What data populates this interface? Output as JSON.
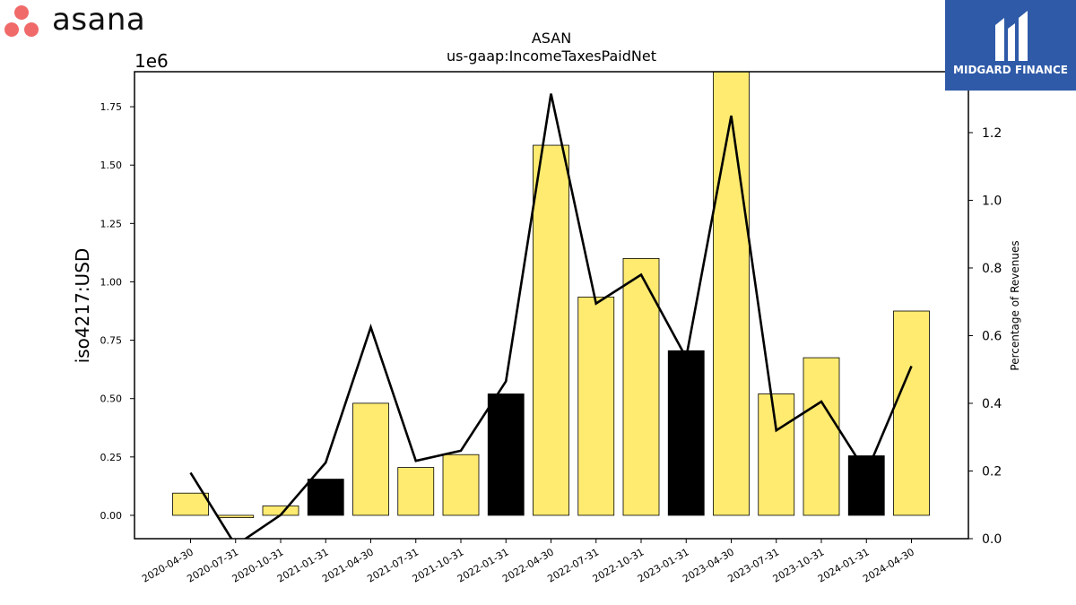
{
  "brand": {
    "name": "asana",
    "logo_color": "#f06a6a"
  },
  "sponsor": {
    "name": "MIDGARD FINANCE",
    "bg_color": "#2f5aa8"
  },
  "chart_data": {
    "type": "bar",
    "title": "ASAN",
    "subtitle": "us-gaap:IncomeTaxesPaidNet",
    "ylabel": "iso4217:USD",
    "y_offset_text": "1e6",
    "y2label": "Percentage of Revenues",
    "categories": [
      "2020-04-30",
      "2020-07-31",
      "2020-10-31",
      "2021-01-31",
      "2021-04-30",
      "2021-07-31",
      "2021-10-31",
      "2022-01-31",
      "2022-04-30",
      "2022-07-31",
      "2022-10-31",
      "2023-01-31",
      "2023-04-30",
      "2023-07-31",
      "2023-10-31",
      "2024-01-31",
      "2024-04-30"
    ],
    "series": [
      {
        "values": [
          0.095,
          -0.01,
          0.04,
          0.155,
          0.48,
          0.205,
          0.26,
          0.52,
          1.585,
          0.935,
          1.1,
          0.705,
          1.9,
          0.52,
          0.675,
          0.255,
          0.875
        ],
        "bar_colors": [
          "#ffeb70",
          "#ffeb70",
          "#ffeb70",
          "#000000",
          "#ffeb70",
          "#ffeb70",
          "#ffeb70",
          "#000000",
          "#ffeb70",
          "#ffeb70",
          "#ffeb70",
          "#000000",
          "#ffeb70",
          "#ffeb70",
          "#ffeb70",
          "#000000",
          "#ffeb70"
        ]
      },
      {
        "axis": "right",
        "type": "line",
        "color": "#000000",
        "values": [
          0.195,
          -0.02,
          0.07,
          0.225,
          0.625,
          0.23,
          0.26,
          0.465,
          1.315,
          0.695,
          0.78,
          0.535,
          1.25,
          0.32,
          0.405,
          0.195,
          0.51
        ]
      }
    ],
    "ylim": [
      -0.1,
      1.9
    ],
    "y2lim": [
      0.0,
      1.38
    ],
    "yticks": [
      "0.00",
      "0.25",
      "0.50",
      "0.75",
      "1.00",
      "1.25",
      "1.50",
      "1.75"
    ],
    "y2ticks": [
      "0.0",
      "0.2",
      "0.4",
      "0.6",
      "0.8",
      "1.0",
      "1.2"
    ],
    "grid": false
  }
}
